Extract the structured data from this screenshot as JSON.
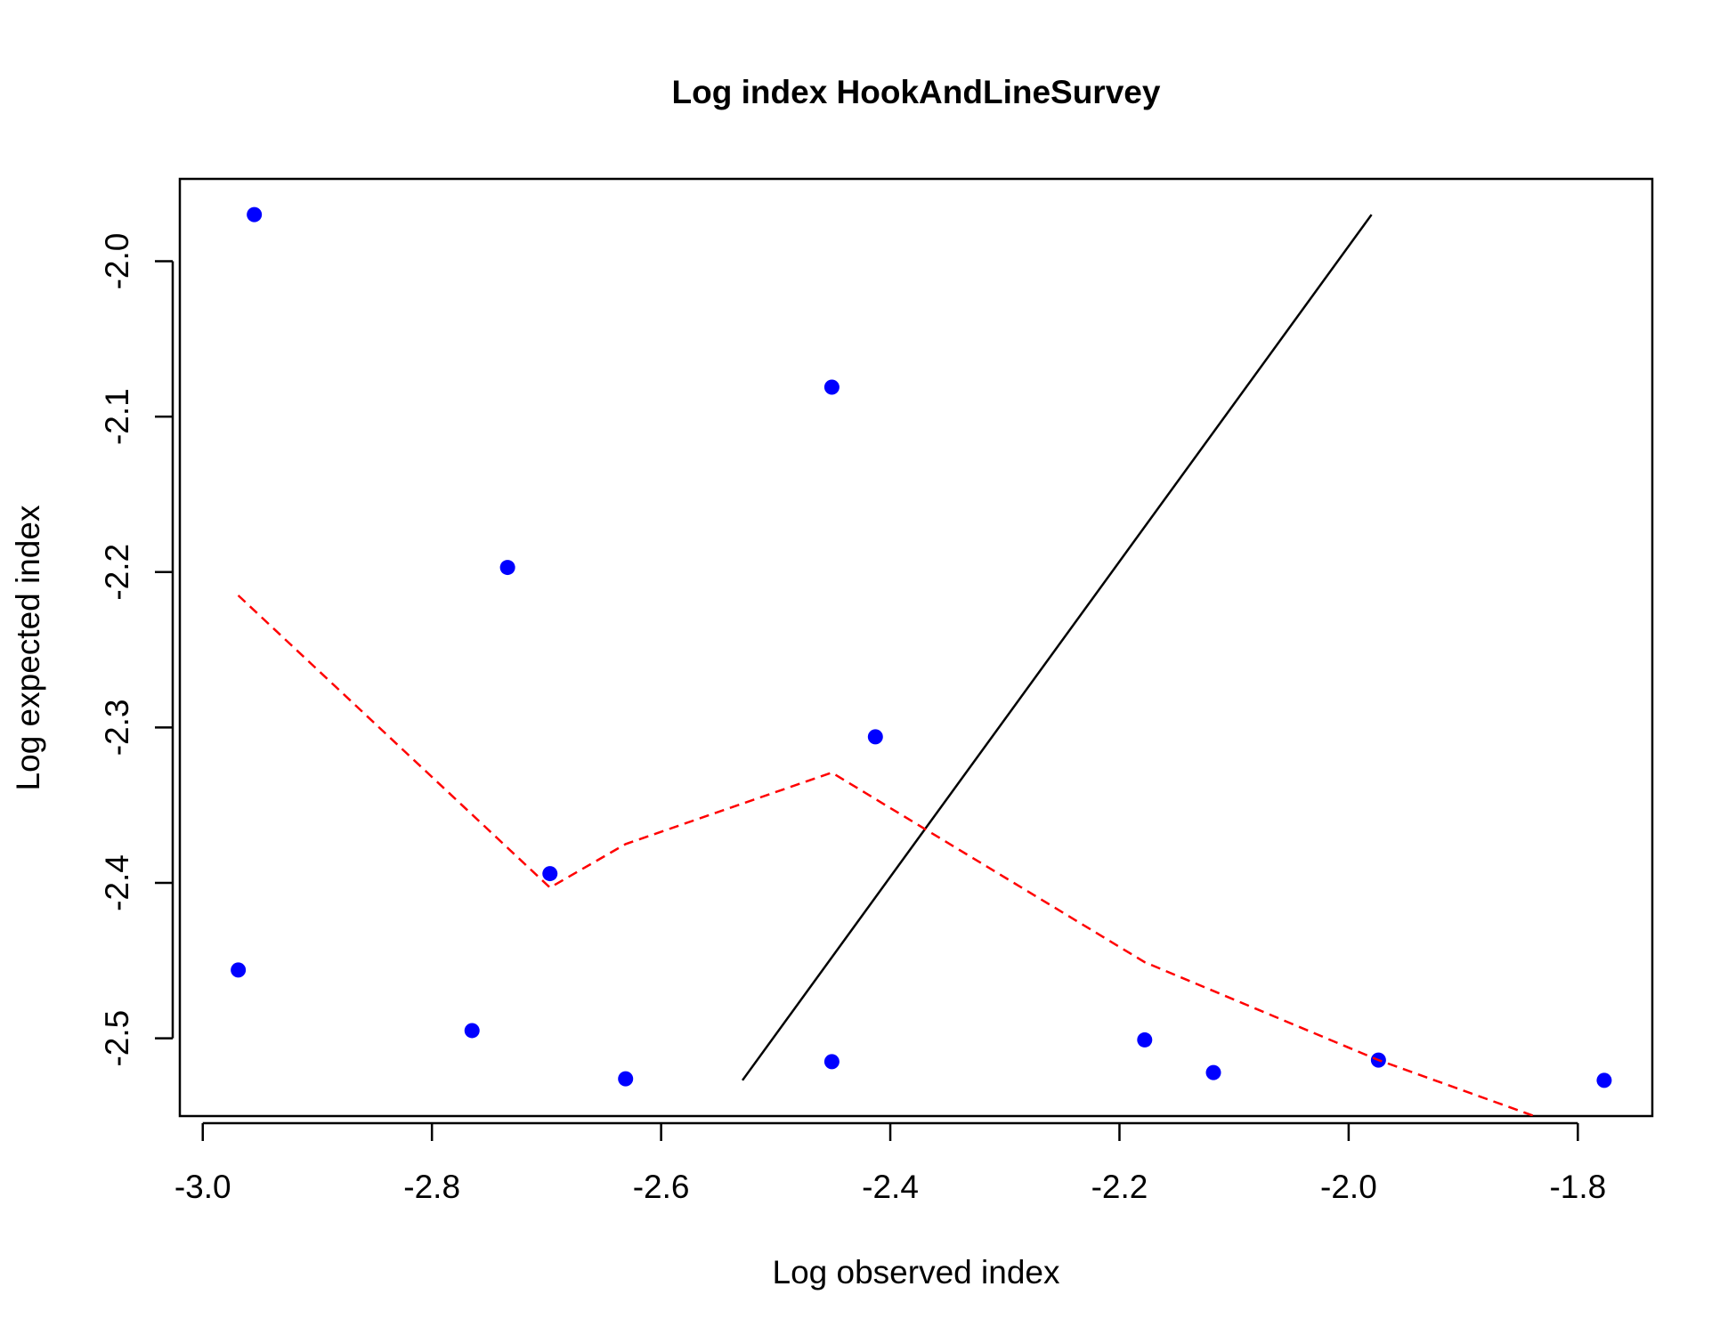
{
  "chart_data": {
    "type": "scatter",
    "title": "Log index HookAndLineSurvey",
    "xlabel": "Log observed index",
    "ylabel": "Log expected index",
    "xlim": [
      -3.02,
      -1.735
    ],
    "ylim": [
      -2.55,
      -1.947
    ],
    "xticks": [
      -3.0,
      -2.8,
      -2.6,
      -2.4,
      -2.2,
      -2.0,
      -1.8
    ],
    "xtick_labels": [
      "-3.0",
      "-2.8",
      "-2.6",
      "-2.4",
      "-2.2",
      "-2.0",
      "-1.8"
    ],
    "yticks": [
      -2.5,
      -2.4,
      -2.3,
      -2.2,
      -2.1,
      -2.0
    ],
    "ytick_labels": [
      "-2.5",
      "-2.4",
      "-2.3",
      "-2.2",
      "-2.1",
      "-2.0"
    ],
    "grid": false,
    "legend": "none",
    "colors": {
      "points": "#0000ff",
      "fit_line": "#000000",
      "smoother": "#ff0000"
    },
    "series": [
      {
        "kind": "points",
        "x": [
          -2.955,
          -2.969,
          -2.734,
          -2.765,
          -2.697,
          -2.631,
          -2.451,
          -2.413,
          -2.451,
          -2.178,
          -2.118,
          -1.974,
          -1.777
        ],
        "y": [
          -1.97,
          -2.456,
          -2.197,
          -2.495,
          -2.394,
          -2.526,
          -2.081,
          -2.306,
          -2.515,
          -2.501,
          -2.522,
          -2.514,
          -2.527
        ]
      },
      {
        "kind": "line",
        "x": [
          -2.529,
          -1.98
        ],
        "y": [
          -2.527,
          -1.97
        ]
      },
      {
        "kind": "dashed-line",
        "x": [
          -2.969,
          -2.697,
          -2.631,
          -2.451,
          -2.178,
          -1.974,
          -1.838
        ],
        "y": [
          -2.215,
          -2.403,
          -2.375,
          -2.329,
          -2.451,
          -2.514,
          -2.55
        ]
      }
    ]
  }
}
